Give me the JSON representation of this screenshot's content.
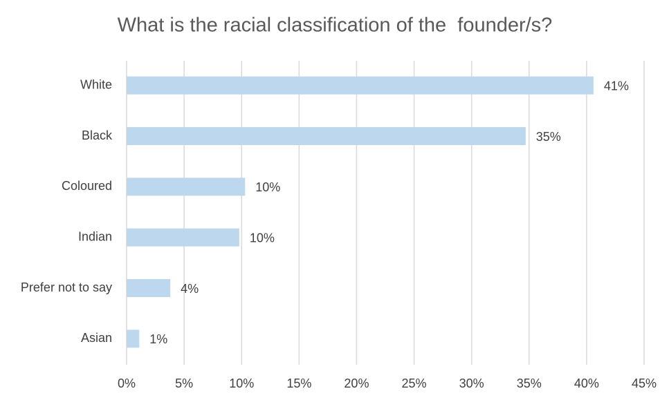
{
  "chart_data": {
    "type": "hbar",
    "title": "What is the racial classification of the  founder/s?",
    "categories": [
      "White",
      "Black",
      "Coloured",
      "Indian",
      "Prefer not to say",
      "Asian"
    ],
    "values": [
      40.6,
      34.7,
      10.3,
      9.8,
      3.8,
      1.1
    ],
    "value_labels": [
      "41%",
      "35%",
      "10%",
      "10%",
      "4%",
      "1%"
    ],
    "color": "#bdd7ee",
    "xlim": [
      0,
      45
    ],
    "xticks": [
      {
        "value": 0,
        "label": "0%"
      },
      {
        "value": 5,
        "label": "5%"
      },
      {
        "value": 10,
        "label": "10%"
      },
      {
        "value": 15,
        "label": "15%"
      },
      {
        "value": 20,
        "label": "20%"
      },
      {
        "value": 25,
        "label": "25%"
      },
      {
        "value": 30,
        "label": "30%"
      },
      {
        "value": 35,
        "label": "35%"
      },
      {
        "value": 40,
        "label": "40%"
      },
      {
        "value": 45,
        "label": "45%"
      }
    ],
    "grid": true
  }
}
